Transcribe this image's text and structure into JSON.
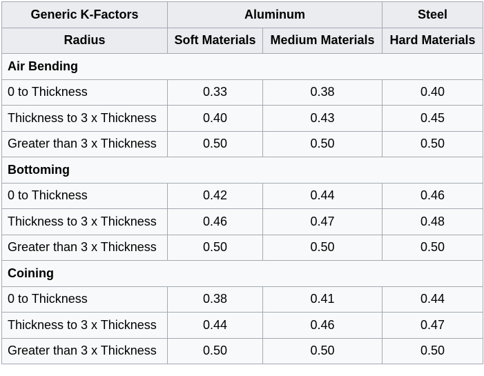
{
  "header": {
    "row1": {
      "col1": "Generic K-Factors",
      "aluminum": "Aluminum",
      "steel": "Steel"
    },
    "row2": {
      "radius": "Radius",
      "soft": "Soft Materials",
      "medium": "Medium Materials",
      "hard": "Hard Materials"
    }
  },
  "sections": [
    {
      "title": "Air Bending",
      "rows": [
        {
          "label": "0 to Thickness",
          "soft": "0.33",
          "medium": "0.38",
          "hard": "0.40"
        },
        {
          "label": "Thickness to 3 x Thickness",
          "soft": "0.40",
          "medium": "0.43",
          "hard": "0.45"
        },
        {
          "label": "Greater than 3 x Thickness",
          "soft": "0.50",
          "medium": "0.50",
          "hard": "0.50"
        }
      ]
    },
    {
      "title": "Bottoming",
      "rows": [
        {
          "label": "0 to Thickness",
          "soft": "0.42",
          "medium": "0.44",
          "hard": "0.46"
        },
        {
          "label": "Thickness to 3 x Thickness",
          "soft": "0.46",
          "medium": "0.47",
          "hard": "0.48"
        },
        {
          "label": "Greater than 3 x Thickness",
          "soft": "0.50",
          "medium": "0.50",
          "hard": "0.50"
        }
      ]
    },
    {
      "title": "Coining",
      "rows": [
        {
          "label": "0 to Thickness",
          "soft": "0.38",
          "medium": "0.41",
          "hard": "0.44"
        },
        {
          "label": "Thickness to 3 x Thickness",
          "soft": "0.44",
          "medium": "0.46",
          "hard": "0.47"
        },
        {
          "label": "Greater than 3 x Thickness",
          "soft": "0.50",
          "medium": "0.50",
          "hard": "0.50"
        }
      ]
    }
  ]
}
